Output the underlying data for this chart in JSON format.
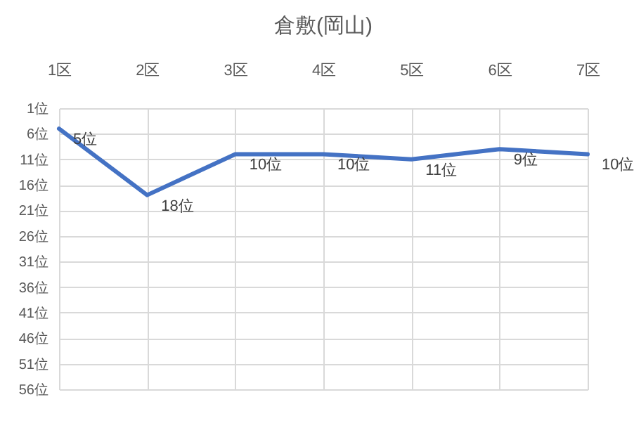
{
  "chart_data": {
    "type": "line",
    "title": "倉敷(岡山)",
    "categories": [
      "1区",
      "2区",
      "3区",
      "4区",
      "5区",
      "6区",
      "7区"
    ],
    "series": [
      {
        "color": "#4472c4",
        "values": [
          5,
          18,
          10,
          10,
          11,
          9,
          10
        ],
        "value_labels": [
          "5位",
          "18位",
          "10位",
          "10位",
          "11位",
          "9位",
          "10位"
        ]
      }
    ],
    "ylim": [
      56,
      1
    ],
    "yticks": [
      {
        "value": 1,
        "label": "1位"
      },
      {
        "value": 6,
        "label": "6位"
      },
      {
        "value": 11,
        "label": "11位"
      },
      {
        "value": 16,
        "label": "16位"
      },
      {
        "value": 21,
        "label": "21位"
      },
      {
        "value": 26,
        "label": "26位"
      },
      {
        "value": 31,
        "label": "31位"
      },
      {
        "value": 36,
        "label": "36位"
      },
      {
        "value": 41,
        "label": "41位"
      },
      {
        "value": 46,
        "label": "46位"
      },
      {
        "value": 51,
        "label": "51位"
      },
      {
        "value": 56,
        "label": "56位"
      }
    ],
    "grid": true,
    "marker": "none",
    "line_style": "solid"
  }
}
